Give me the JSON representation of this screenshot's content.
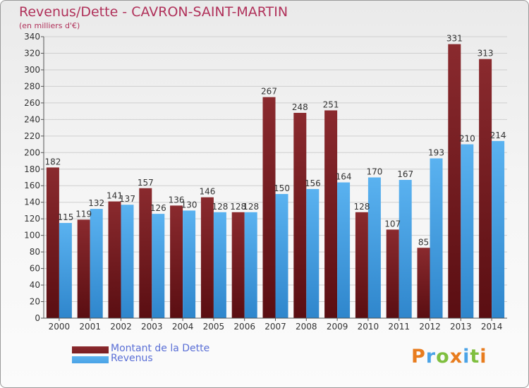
{
  "title": "Revenus/Dette - CAVRON-SAINT-MARTIN",
  "subtitle": "(en milliers d'€)",
  "legend": [
    {
      "label": "Montant de la Dette",
      "color": "#7a1e22"
    },
    {
      "label": "Revenus",
      "color": "#4ba3e6"
    }
  ],
  "logo": {
    "letters": [
      "P",
      "r",
      "o",
      "x",
      "i",
      "t",
      "i"
    ],
    "colors": [
      "#e87c1e",
      "#4ba3e6",
      "#7fbf3f",
      "#e87c1e",
      "#4ba3e6",
      "#7fbf3f",
      "#e87c1e"
    ]
  },
  "chart_data": {
    "type": "bar",
    "categories": [
      "2000",
      "2001",
      "2002",
      "2003",
      "2004",
      "2005",
      "2006",
      "2007",
      "2008",
      "2009",
      "2010",
      "2011",
      "2012",
      "2013",
      "2014"
    ],
    "series": [
      {
        "name": "Montant de la Dette",
        "values": [
          182,
          119,
          141,
          157,
          136,
          146,
          128,
          267,
          248,
          251,
          128,
          107,
          85,
          331,
          313
        ],
        "color": "#7a1e22"
      },
      {
        "name": "Revenus",
        "values": [
          115,
          132,
          137,
          126,
          130,
          128,
          128,
          150,
          156,
          164,
          170,
          167,
          193,
          210,
          214
        ],
        "color": "#4ba3e6"
      }
    ],
    "ylim": [
      0,
      340
    ],
    "yticks": [
      0,
      20,
      40,
      60,
      80,
      100,
      120,
      140,
      160,
      180,
      200,
      220,
      240,
      260,
      280,
      300,
      320,
      340
    ],
    "grid": true
  }
}
